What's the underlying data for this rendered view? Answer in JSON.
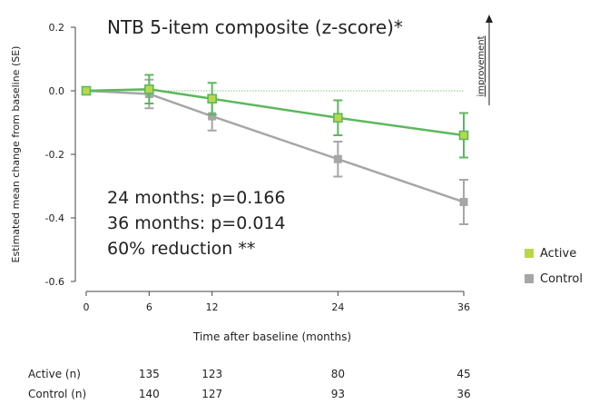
{
  "chart_data": {
    "type": "line",
    "title": "NTB 5-item composite (z-score)*",
    "xlabel": "Time after baseline (months)",
    "ylabel": "Estimated mean change from baseline (SE)",
    "x": [
      0,
      6,
      12,
      24,
      36
    ],
    "x_ticks": [
      "0",
      "6",
      "12",
      "24",
      "36"
    ],
    "ylim": [
      -0.6,
      0.2
    ],
    "y_ticks": [
      "0.2",
      "0.0",
      "-0.2",
      "-0.4",
      "-0.6"
    ],
    "y_tick_values": [
      0.2,
      0.0,
      -0.2,
      -0.4,
      -0.6
    ],
    "reference_line": 0.0,
    "series": [
      {
        "name": "Control",
        "color": "#a6a6a6",
        "values": [
          0.0,
          -0.01,
          -0.08,
          -0.215,
          -0.35
        ],
        "se": [
          0.0,
          0.045,
          0.045,
          0.055,
          0.07
        ]
      },
      {
        "name": "Active",
        "color": "#5cb85c",
        "marker_fill": "#b8d84a",
        "values": [
          0.0,
          0.005,
          -0.025,
          -0.085,
          -0.14
        ],
        "se": [
          0.0,
          0.045,
          0.05,
          0.055,
          0.07
        ]
      }
    ],
    "annotations": [
      "24 months: p=0.166",
      "36 months: p=0.014",
      "60% reduction **"
    ],
    "side_label": "improvement",
    "legend": {
      "position": "right",
      "items": [
        "Active",
        "Control"
      ]
    },
    "counts": {
      "rows": [
        {
          "label": "Active (n)",
          "values": [
            "135",
            "123",
            "80",
            "45"
          ]
        },
        {
          "label": "Control (n)",
          "values": [
            "140",
            "127",
            "93",
            "36"
          ]
        }
      ],
      "x": [
        6,
        12,
        24,
        36
      ]
    }
  }
}
